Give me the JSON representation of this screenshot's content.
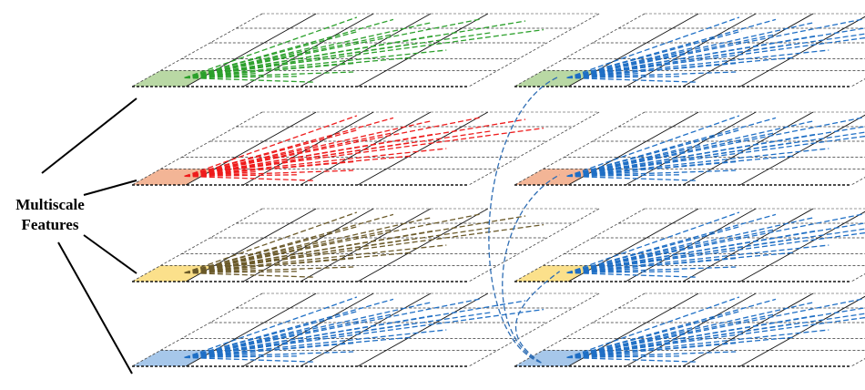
{
  "caption": {
    "line1": "Multiscale",
    "line2": "Features"
  },
  "colors": {
    "green": "#2ca02c",
    "red": "#ee1c1c",
    "olive": "#6b5a2a",
    "blue": "#1f6fc5",
    "fill_green": "#b9d8a4",
    "fill_orange": "#f3b596",
    "fill_yellow": "#fbe08b",
    "fill_blue": "#a6c7ea",
    "bridge": "#2e6db4"
  },
  "left_column": [
    {
      "level": 1,
      "ray_color": "green",
      "cell_fill": "fill_green"
    },
    {
      "level": 2,
      "ray_color": "red",
      "cell_fill": "fill_orange"
    },
    {
      "level": 3,
      "ray_color": "olive",
      "cell_fill": "fill_yellow"
    },
    {
      "level": 4,
      "ray_color": "blue",
      "cell_fill": "fill_blue"
    }
  ],
  "right_column": [
    {
      "level": 1,
      "ray_color": "blue",
      "cell_fill": "fill_green"
    },
    {
      "level": 2,
      "ray_color": "blue",
      "cell_fill": "fill_orange"
    },
    {
      "level": 3,
      "ray_color": "blue",
      "cell_fill": "fill_yellow"
    },
    {
      "level": 4,
      "ray_color": "blue",
      "cell_fill": "fill_blue"
    }
  ]
}
